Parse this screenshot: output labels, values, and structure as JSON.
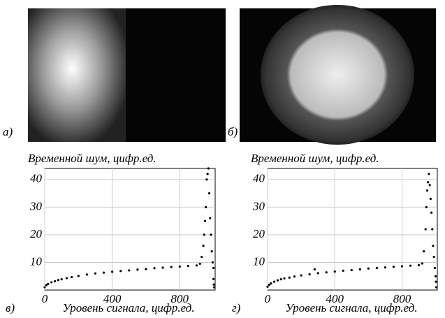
{
  "panel_labels": [
    "а)",
    "б)",
    "в)",
    "г)"
  ],
  "chart_data": [
    {
      "type": "scatter",
      "y_label": "Временной шум, цифр.ед.",
      "x_label": "Уровень сигнала, цифр.ед.",
      "color": "#000000",
      "grid": true,
      "xlim": [
        0,
        1010
      ],
      "ylim": [
        0,
        44
      ],
      "xticks": [
        0,
        400,
        800
      ],
      "yticks": [
        10,
        20,
        30,
        40
      ],
      "x": [
        0,
        10,
        20,
        40,
        60,
        80,
        100,
        130,
        160,
        200,
        250,
        300,
        350,
        400,
        450,
        500,
        550,
        600,
        650,
        700,
        750,
        800,
        850,
        900,
        920,
        930,
        940,
        945,
        950,
        955,
        960,
        965,
        970,
        975,
        980,
        985,
        990,
        995,
        1000,
        1000,
        1002,
        1004
      ],
      "y": [
        1,
        1.8,
        2.2,
        2.8,
        3.2,
        3.6,
        3.9,
        4.3,
        4.7,
        5.1,
        5.6,
        6,
        6.3,
        6.6,
        6.9,
        7.1,
        7.4,
        7.6,
        7.9,
        8.1,
        8.3,
        8.5,
        8.7,
        8.9,
        9.5,
        12,
        16,
        20,
        25,
        30,
        40,
        42,
        44,
        35,
        26,
        20,
        14,
        10,
        8,
        4,
        2,
        1
      ]
    },
    {
      "type": "scatter",
      "y_label": "Временной шум, цифр.ед.",
      "x_label": "Уровень сигнала, цифр.ед.",
      "color": "#000000",
      "grid": true,
      "xlim": [
        0,
        1010
      ],
      "ylim": [
        0,
        44
      ],
      "xticks": [
        0,
        400,
        800
      ],
      "yticks": [
        10,
        20,
        30,
        40
      ],
      "x": [
        0,
        10,
        20,
        40,
        60,
        80,
        100,
        130,
        160,
        200,
        250,
        280,
        300,
        350,
        400,
        450,
        500,
        550,
        600,
        650,
        700,
        750,
        800,
        850,
        900,
        920,
        930,
        940,
        945,
        950,
        955,
        960,
        965,
        970,
        975,
        980,
        985,
        990,
        995,
        1000,
        1002,
        1004
      ],
      "y": [
        1.2,
        1.9,
        2.4,
        3,
        3.5,
        3.9,
        4.2,
        4.5,
        4.9,
        5.3,
        5.7,
        7.5,
        6.1,
        6.4,
        6.7,
        7,
        7.2,
        7.5,
        7.8,
        8,
        8.2,
        8.4,
        8.6,
        8.8,
        9,
        9.6,
        14,
        22,
        30,
        36,
        39,
        42,
        38,
        33,
        28,
        22,
        16,
        12,
        8,
        5,
        3,
        1
      ]
    }
  ]
}
